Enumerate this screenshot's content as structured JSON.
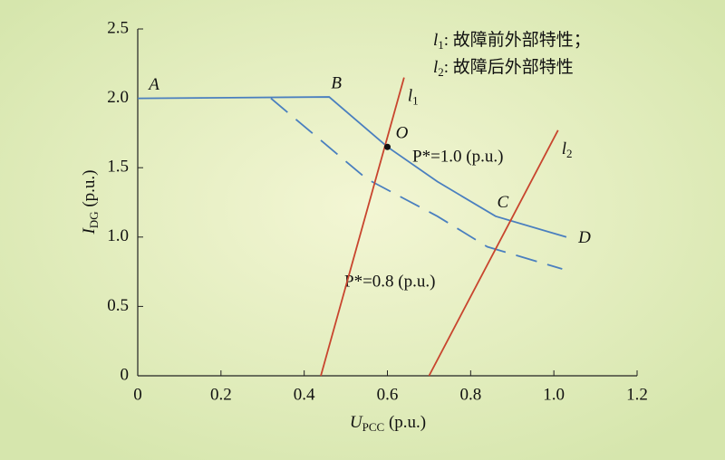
{
  "chart_data": {
    "type": "line",
    "x_label": {
      "symbol": "U",
      "sub": "PCC",
      "rest": " (p.u.)"
    },
    "y_label": {
      "symbol": "I",
      "sub": "DG",
      "rest": " (p.u.)"
    },
    "xlim": [
      0,
      1.2
    ],
    "xticks": [
      0,
      0.2,
      0.4,
      0.6,
      0.8,
      {
        "value": 1,
        "label": "1.0"
      },
      1.2
    ],
    "ylim": [
      0,
      2.5
    ],
    "yticks": [
      0,
      0.5,
      {
        "value": 1,
        "label": "1.0"
      },
      1.5,
      {
        "value": 2,
        "label": "2.0"
      },
      2.5
    ],
    "legend": [
      {
        "symbol": "l",
        "sub": "1",
        "text": ": 故障前外部特性；"
      },
      {
        "symbol": "l",
        "sub": "2",
        "text": ": 故障后外部特性"
      }
    ],
    "series": [
      {
        "name": "P*=1.0 (p.u.)",
        "color": "#4a7fbf",
        "dash": false,
        "x": [
          0,
          0.46,
          0.6,
          0.72,
          0.86,
          1.03
        ],
        "values": [
          2.0,
          2.01,
          1.65,
          1.4,
          1.15,
          1.0
        ],
        "point_labels": [
          "A",
          "B",
          "O",
          null,
          "C",
          "D"
        ]
      },
      {
        "name": "P*=0.8 (p.u.)",
        "color": "#4a7fbf",
        "dash": true,
        "x": [
          0.32,
          0.55,
          0.72,
          0.84,
          1.02
        ],
        "values": [
          2.0,
          1.42,
          1.15,
          0.93,
          0.77
        ]
      },
      {
        "name": {
          "symbol": "l",
          "sub": "1"
        },
        "color": "#c8452e",
        "dash": false,
        "x": [
          0.44,
          0.64
        ],
        "values": [
          0,
          2.15
        ]
      },
      {
        "name": {
          "symbol": "l",
          "sub": "2"
        },
        "color": "#c8452e",
        "dash": false,
        "x": [
          0.7,
          1.01
        ],
        "values": [
          0,
          1.77
        ]
      }
    ],
    "marker_point": {
      "series": 0,
      "index": 2
    }
  }
}
